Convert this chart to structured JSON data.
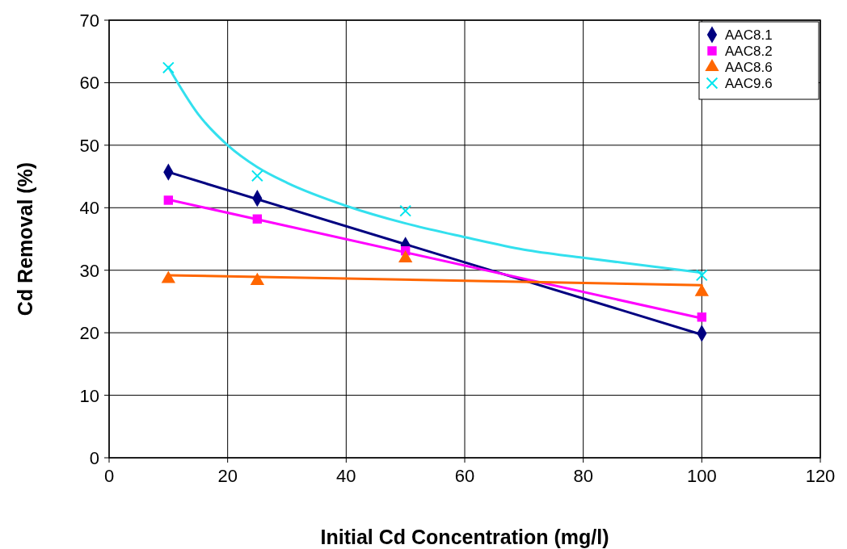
{
  "chart_data": {
    "type": "scatter",
    "xlabel": "Initial Cd Concentration (mg/l)",
    "ylabel": "Cd Removal (%)",
    "xlim": [
      0,
      120
    ],
    "xticks": [
      0,
      20,
      40,
      60,
      80,
      100,
      120
    ],
    "ylim": [
      0,
      70
    ],
    "yticks": [
      0,
      10,
      20,
      30,
      40,
      50,
      60,
      70
    ],
    "grid": true,
    "legend": "top right",
    "series": [
      {
        "name": "AAC8.1",
        "color": "#000080",
        "marker": "diamond",
        "x": [
          10,
          25,
          50,
          100
        ],
        "values": [
          45.7,
          41.5,
          34.0,
          19.9
        ]
      },
      {
        "name": "AAC8.2",
        "color": "#ff00ff",
        "marker": "square",
        "x": [
          10,
          25,
          50,
          100
        ],
        "values": [
          41.2,
          38.2,
          33.1,
          22.5
        ]
      },
      {
        "name": "AAC8.6",
        "color": "#ff6600",
        "marker": "triangle",
        "x": [
          10,
          25,
          50,
          100
        ],
        "values": [
          28.6,
          28.3,
          31.9,
          26.5
        ]
      },
      {
        "name": "AAC9.6",
        "color": "#00e5ee",
        "marker": "cross",
        "x": [
          10,
          25,
          50,
          100
        ],
        "values": [
          62.4,
          45.1,
          39.5,
          29.2
        ]
      },
      {
        "type": "line",
        "color": "#000080",
        "marker": "none",
        "x": [
          10,
          100
        ],
        "values": [
          45.7,
          19.7
        ]
      },
      {
        "type": "line",
        "color": "#ff00ff",
        "marker": "none",
        "x": [
          10,
          100
        ],
        "values": [
          41.3,
          22.3
        ]
      },
      {
        "type": "line",
        "color": "#ff6600",
        "marker": "none",
        "x": [
          10,
          100
        ],
        "values": [
          29.2,
          27.6
        ]
      },
      {
        "type": "line",
        "color": "#33e0ee",
        "marker": "none",
        "x": [
          10,
          15,
          20,
          25,
          30,
          40,
          50,
          60,
          70,
          80,
          90,
          100
        ],
        "values": [
          62.5,
          55,
          50,
          46.5,
          44,
          40.3,
          37.5,
          35.3,
          33.3,
          32,
          30.8,
          29.6
        ]
      }
    ]
  }
}
